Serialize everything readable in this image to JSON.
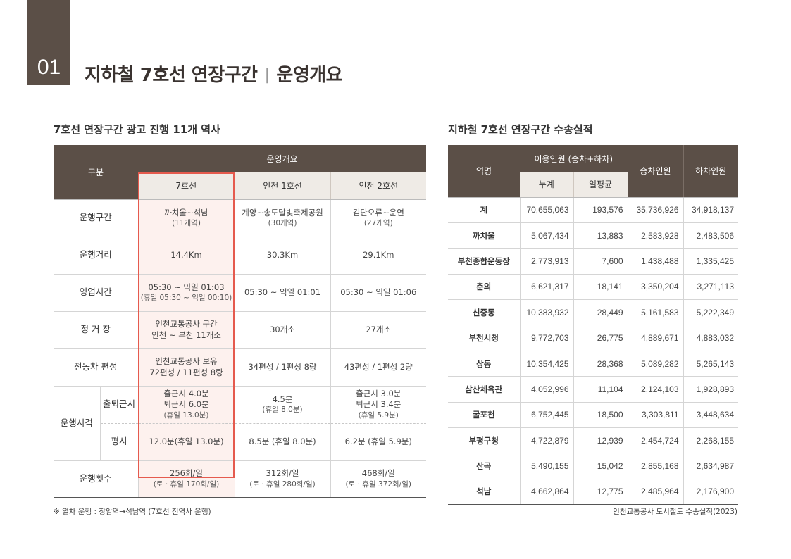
{
  "section_number": "01",
  "title": {
    "main": "지하철 7호선 연장구간",
    "separator": "|",
    "sub": "운영개요"
  },
  "left_table": {
    "title": "7호선 연장구간 광고 진행 11개 역사",
    "header": {
      "category": "구분",
      "group": "운영개요",
      "cols": [
        "7호선",
        "인천 1호선",
        "인천 2호선"
      ]
    },
    "rows": {
      "route": {
        "label": "운행구간",
        "c1": {
          "main": "까치울~석남",
          "sub": "(11개역)"
        },
        "c2": {
          "main": "계양~송도달빛축제공원",
          "sub": "(30개역)"
        },
        "c3": {
          "main": "검단오류~운연",
          "sub": "(27개역)"
        }
      },
      "distance": {
        "label": "운행거리",
        "c1": "14.4Km",
        "c2": "30.3Km",
        "c3": "29.1Km"
      },
      "hours": {
        "label": "영업시간",
        "c1": {
          "main": "05:30 ~ 익일 01:03",
          "sub": "(휴일 05:30 ~ 익일 00:10)"
        },
        "c2": "05:30 ~ 익일 01:01",
        "c3": "05:30 ~ 익일 01:06"
      },
      "stations": {
        "label": "정 거 장",
        "c1": {
          "line1": "인천교통공사 구간",
          "line2": "인천 ~ 부천 11개소"
        },
        "c2": "30개소",
        "c3": "27개소"
      },
      "cars": {
        "label": "전동차 편성",
        "c1": {
          "line1": "인천교통공사 보유",
          "line2": "72편성 / 11편성 8량"
        },
        "c2": "34편성 / 1편성 8량",
        "c3": "43편성 / 1편성 2량"
      },
      "interval": {
        "label": "운행시격",
        "rush": {
          "label": "출퇴근시",
          "c1": {
            "line1": "출근시 4.0분",
            "line2": "퇴근시 6.0분",
            "sub": "(휴일 13.0분)"
          },
          "c2": {
            "main": "4.5분",
            "sub": "(휴일 8.0분)"
          },
          "c3": {
            "line1": "출근시 3.0분",
            "line2": "퇴근시 3.4분",
            "sub": "(휴일 5.9분)"
          }
        },
        "normal": {
          "label": "평시",
          "c1": "12.0분(휴일 13.0분)",
          "c2": "8.5분 (휴일 8.0분)",
          "c3": "6.2분 (휴일 5.9분)"
        }
      },
      "count": {
        "label": "운행횟수",
        "c1": {
          "main": "256회/일",
          "sub": "(토 · 휴일 170회/일)"
        },
        "c2": {
          "main": "312회/일",
          "sub": "(토 · 휴일 280회/일)"
        },
        "c3": {
          "main": "468회/일",
          "sub": "(토 · 휴일 372회/일)"
        }
      }
    },
    "note": "※ 열차 운행 : 장암역→석남역 (7호선 전역사 운행)"
  },
  "right_table": {
    "title": "지하철 7호선 연장구간 수송실적",
    "header": {
      "station": "역명",
      "group": "이용인원 (승차+하차)",
      "total": "누계",
      "daily": "일평균",
      "boarding": "승차인원",
      "alighting": "하차인원"
    },
    "rows": [
      [
        "계",
        "70,655,063",
        "193,576",
        "35,736,926",
        "34,918,137"
      ],
      [
        "까치울",
        "5,067,434",
        "13,883",
        "2,583,928",
        "2,483,506"
      ],
      [
        "부천종합운동장",
        "2,773,913",
        "7,600",
        "1,438,488",
        "1,335,425"
      ],
      [
        "춘의",
        "6,621,317",
        "18,141",
        "3,350,204",
        "3,271,113"
      ],
      [
        "신중동",
        "10,383,932",
        "28,449",
        "5,161,583",
        "5,222,349"
      ],
      [
        "부천시청",
        "9,772,703",
        "26,775",
        "4,889,671",
        "4,883,032"
      ],
      [
        "상동",
        "10,354,425",
        "28,368",
        "5,089,282",
        "5,265,143"
      ],
      [
        "삼산체육관",
        "4,052,996",
        "11,104",
        "2,124,103",
        "1,928,893"
      ],
      [
        "굴포천",
        "6,752,445",
        "18,500",
        "3,303,811",
        "3,448,634"
      ],
      [
        "부평구청",
        "4,722,879",
        "12,939",
        "2,454,724",
        "2,268,155"
      ],
      [
        "산곡",
        "5,490,155",
        "15,042",
        "2,855,168",
        "2,634,987"
      ],
      [
        "석남",
        "4,662,864",
        "12,775",
        "2,485,964",
        "2,176,900"
      ]
    ],
    "source": "인천교통공사 도시철도 수송실적(2023)"
  }
}
